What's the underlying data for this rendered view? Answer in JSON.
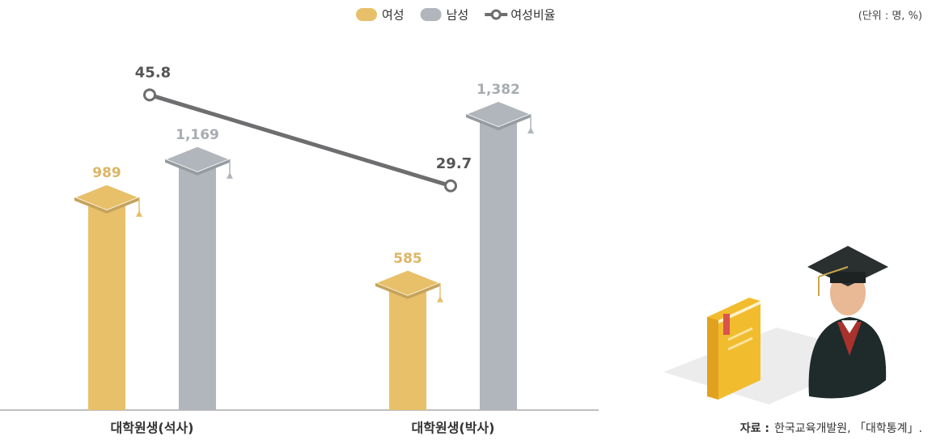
{
  "chart_data": {
    "type": "bar",
    "unit": "(단위 : 명, %)",
    "categories": [
      "대학원생(석사)",
      "대학원생(박사)"
    ],
    "series": [
      {
        "name": "여성",
        "color": "#e8c06a",
        "values": [
          989,
          585
        ]
      },
      {
        "name": "남성",
        "color": "#b1b6bc",
        "values": [
          1169,
          1382
        ],
        "value_labels": [
          "1,169",
          "1,382"
        ]
      },
      {
        "name": "여성비율",
        "color": "#6e6e70",
        "type": "line",
        "axis": "y2",
        "values": [
          45.8,
          29.7
        ]
      }
    ],
    "ylim": [
      0,
      1600
    ],
    "y2lim": [
      -10,
      50
    ],
    "source": {
      "label": "자료 :",
      "text": "한국교육개발원, 「대학통계」."
    }
  }
}
